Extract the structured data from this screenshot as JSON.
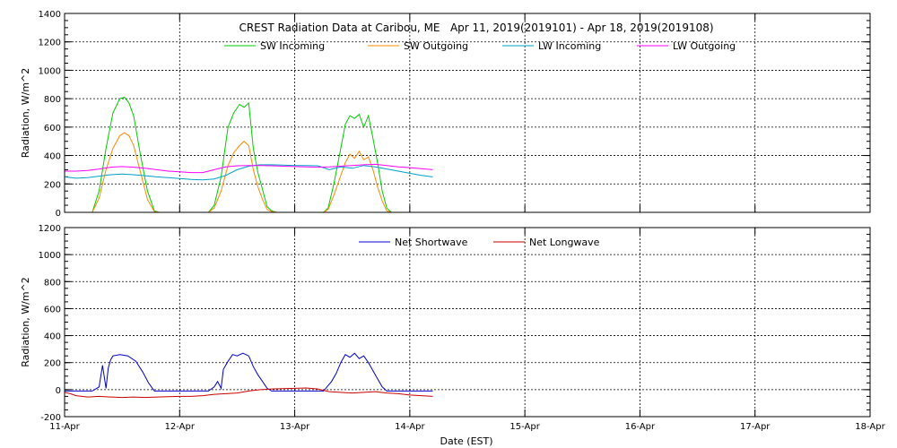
{
  "title": "CREST Radiation Data at Caribou, ME   Apr 11, 2019(2019101) - Apr 18, 2019(2019108)",
  "xlabel": "Date (EST)",
  "x_ticks": [
    "11-Apr",
    "12-Apr",
    "13-Apr",
    "14-Apr",
    "15-Apr",
    "16-Apr",
    "17-Apr",
    "18-Apr"
  ],
  "chart_data": [
    {
      "type": "line",
      "ylabel": "Radiation, W/m^2",
      "ylim": [
        0,
        1400
      ],
      "yticks": [
        0,
        200,
        400,
        600,
        800,
        1000,
        1200,
        1400
      ],
      "xlim": [
        0,
        7
      ],
      "grid": true,
      "legend_position": "top",
      "series": [
        {
          "name": "SW Incoming",
          "color": "#00cc00",
          "x": [
            0,
            0.24,
            0.3,
            0.36,
            0.42,
            0.48,
            0.52,
            0.56,
            0.6,
            0.66,
            0.72,
            0.78,
            0.82,
            1.25,
            1.3,
            1.36,
            1.42,
            1.47,
            1.52,
            1.56,
            1.6,
            1.64,
            1.68,
            1.72,
            1.76,
            1.8,
            1.84,
            2.25,
            2.29,
            2.34,
            2.4,
            2.44,
            2.48,
            2.52,
            2.56,
            2.6,
            2.64,
            2.68,
            2.72,
            2.76,
            2.8,
            2.84
          ],
          "y": [
            0,
            0,
            150,
            450,
            700,
            800,
            810,
            770,
            680,
            400,
            150,
            10,
            0,
            0,
            50,
            250,
            600,
            700,
            760,
            740,
            770,
            450,
            280,
            160,
            40,
            10,
            0,
            0,
            30,
            200,
            450,
            620,
            680,
            660,
            690,
            600,
            680,
            520,
            350,
            150,
            30,
            0
          ]
        },
        {
          "name": "SW Outgoing",
          "color": "#ff8800",
          "x": [
            0,
            0.24,
            0.3,
            0.36,
            0.42,
            0.48,
            0.52,
            0.56,
            0.6,
            0.66,
            0.72,
            0.78,
            0.82,
            1.25,
            1.3,
            1.36,
            1.42,
            1.47,
            1.52,
            1.56,
            1.6,
            1.64,
            1.68,
            1.72,
            1.76,
            1.8,
            1.84,
            2.25,
            2.29,
            2.34,
            2.4,
            2.44,
            2.48,
            2.52,
            2.56,
            2.6,
            2.64,
            2.68,
            2.72,
            2.76,
            2.8,
            2.84
          ],
          "y": [
            0,
            0,
            100,
            300,
            450,
            540,
            560,
            540,
            470,
            280,
            90,
            5,
            0,
            0,
            30,
            150,
            330,
            420,
            470,
            500,
            470,
            300,
            180,
            90,
            20,
            5,
            0,
            0,
            20,
            120,
            260,
            350,
            410,
            380,
            430,
            370,
            390,
            300,
            180,
            80,
            10,
            0
          ]
        },
        {
          "name": "LW Incoming",
          "color": "#00a0c8",
          "x": [
            0,
            0.1,
            0.2,
            0.3,
            0.4,
            0.5,
            0.6,
            0.7,
            0.8,
            0.9,
            1.0,
            1.1,
            1.2,
            1.3,
            1.4,
            1.5,
            1.6,
            1.7,
            1.8,
            1.9,
            2.0,
            2.1,
            2.2,
            2.3,
            2.4,
            2.5,
            2.6,
            2.7,
            2.8,
            2.9,
            3.0,
            3.1,
            3.2
          ],
          "y": [
            250,
            240,
            245,
            255,
            265,
            270,
            265,
            258,
            250,
            245,
            238,
            232,
            228,
            235,
            260,
            300,
            325,
            335,
            335,
            333,
            330,
            330,
            328,
            300,
            320,
            310,
            330,
            320,
            305,
            290,
            275,
            260,
            250
          ]
        },
        {
          "name": "LW Outgoing",
          "color": "#ff00ff",
          "x": [
            0,
            0.1,
            0.2,
            0.3,
            0.4,
            0.5,
            0.6,
            0.7,
            0.8,
            0.9,
            1.0,
            1.1,
            1.2,
            1.3,
            1.4,
            1.5,
            1.6,
            1.7,
            1.8,
            1.9,
            2.0,
            2.1,
            2.2,
            2.3,
            2.4,
            2.5,
            2.6,
            2.7,
            2.8,
            2.9,
            3.0,
            3.1,
            3.2
          ],
          "y": [
            290,
            290,
            295,
            305,
            318,
            322,
            318,
            310,
            300,
            290,
            285,
            280,
            280,
            300,
            320,
            328,
            330,
            330,
            328,
            325,
            322,
            320,
            318,
            320,
            325,
            330,
            335,
            338,
            330,
            320,
            315,
            308,
            300
          ]
        }
      ]
    },
    {
      "type": "line",
      "ylabel": "Radiation, W/m^2",
      "ylim": [
        -200,
        1200
      ],
      "yticks": [
        -200,
        0,
        200,
        400,
        600,
        800,
        1000,
        1200
      ],
      "xlim": [
        0,
        7
      ],
      "grid": true,
      "legend_position": "top",
      "series": [
        {
          "name": "Net Shortwave",
          "color": "#0000cc",
          "x": [
            0,
            0.24,
            0.3,
            0.33,
            0.36,
            0.38,
            0.4,
            0.42,
            0.48,
            0.55,
            0.62,
            0.68,
            0.73,
            0.78,
            1.25,
            1.3,
            1.33,
            1.36,
            1.38,
            1.42,
            1.46,
            1.5,
            1.55,
            1.6,
            1.64,
            1.68,
            1.72,
            1.76,
            1.8,
            2.25,
            2.28,
            2.32,
            2.36,
            2.4,
            2.44,
            2.48,
            2.52,
            2.56,
            2.6,
            2.64,
            2.68,
            2.72,
            2.76,
            2.8,
            3.2
          ],
          "y": [
            -10,
            -10,
            20,
            180,
            10,
            160,
            220,
            250,
            260,
            250,
            210,
            130,
            50,
            -10,
            -10,
            20,
            60,
            10,
            150,
            210,
            260,
            250,
            270,
            250,
            170,
            110,
            60,
            10,
            -10,
            -10,
            20,
            60,
            120,
            200,
            260,
            240,
            270,
            230,
            250,
            200,
            140,
            80,
            20,
            -10,
            -10
          ]
        },
        {
          "name": "Net Longwave",
          "color": "#cc0000",
          "x": [
            0,
            0.05,
            0.1,
            0.2,
            0.3,
            0.4,
            0.5,
            0.6,
            0.7,
            0.8,
            0.9,
            1.0,
            1.1,
            1.2,
            1.3,
            1.4,
            1.5,
            1.6,
            1.7,
            1.8,
            1.9,
            2.0,
            2.1,
            2.2,
            2.3,
            2.4,
            2.5,
            2.6,
            2.7,
            2.8,
            2.9,
            3.0,
            3.1,
            3.2
          ],
          "y": [
            -20,
            -30,
            -45,
            -55,
            -50,
            -55,
            -58,
            -55,
            -58,
            -55,
            -52,
            -50,
            -50,
            -45,
            -35,
            -30,
            -25,
            -10,
            0,
            5,
            8,
            10,
            12,
            5,
            -15,
            -20,
            -25,
            -20,
            -15,
            -25,
            -30,
            -40,
            -45,
            -50
          ]
        }
      ]
    }
  ]
}
